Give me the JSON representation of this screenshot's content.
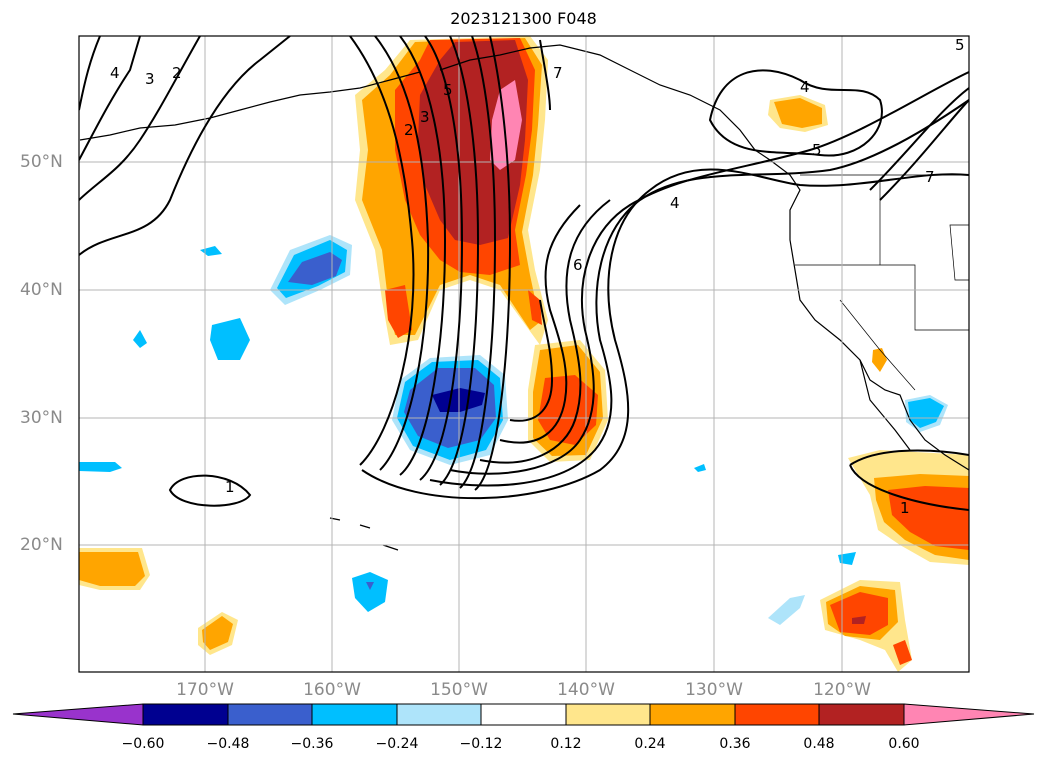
{
  "title": "2023121300 F048",
  "lat_labels": [
    "50°N",
    "40°N",
    "30°N",
    "20°N"
  ],
  "lon_labels": [
    "170°W",
    "160°W",
    "150°W",
    "140°W",
    "130°W",
    "120°W"
  ],
  "colorbar": {
    "ticks": [
      "−0.60",
      "−0.48",
      "−0.36",
      "−0.24",
      "−0.12",
      "0.12",
      "0.24",
      "0.36",
      "0.48",
      "0.60"
    ],
    "colors": [
      "#9933cc",
      "#000090",
      "#3a5fcd",
      "#00bfff",
      "#aee4fa",
      "#ffffff",
      "#ffe68c",
      "#ffa500",
      "#ff4500",
      "#b22222",
      "#ff85b3"
    ]
  },
  "contour_labels": [
    "3",
    "2",
    "4",
    "5",
    "2",
    "3",
    "5",
    "7",
    "4",
    "5",
    "7",
    "4",
    "6",
    "1",
    "1"
  ]
}
